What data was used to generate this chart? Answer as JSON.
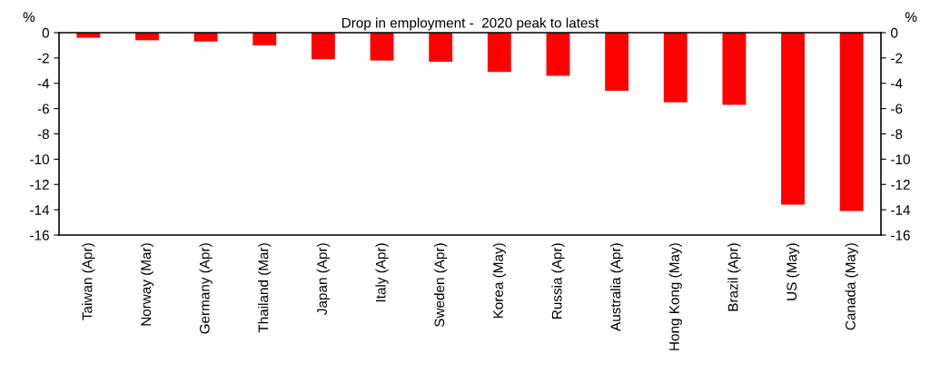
{
  "chart_data": {
    "type": "bar",
    "title": "Drop in employment -  2020 peak to latest",
    "ylabel": "%",
    "y2label": "%",
    "categories": [
      "Taiwan (Apr)",
      "Norway (Mar)",
      "Germany (Apr)",
      "Thailand (Mar)",
      "Japan (Apr)",
      "Italy (Apr)",
      "Sweden (Apr)",
      "Korea (May)",
      "Russia (Apr)",
      "Australia (Apr)",
      "Hong Kong (May)",
      "Brazil (Apr)",
      "US (May)",
      "Canada (May)"
    ],
    "values": [
      -0.4,
      -0.6,
      -0.7,
      -1.0,
      -2.1,
      -2.2,
      -2.3,
      -3.1,
      -3.4,
      -4.6,
      -5.5,
      -5.7,
      -13.6,
      -14.1
    ],
    "color": "#ff0000",
    "ylim": [
      -16,
      0
    ],
    "yticks": [
      -16,
      -14,
      -12,
      -10,
      -8,
      -6,
      -4,
      -2,
      0
    ],
    "y2lim": [
      -16,
      0
    ],
    "y2ticks": [
      -16,
      -14,
      -12,
      -10,
      -8,
      -6,
      -4,
      -2,
      0
    ],
    "grid": false,
    "legend": false
  }
}
